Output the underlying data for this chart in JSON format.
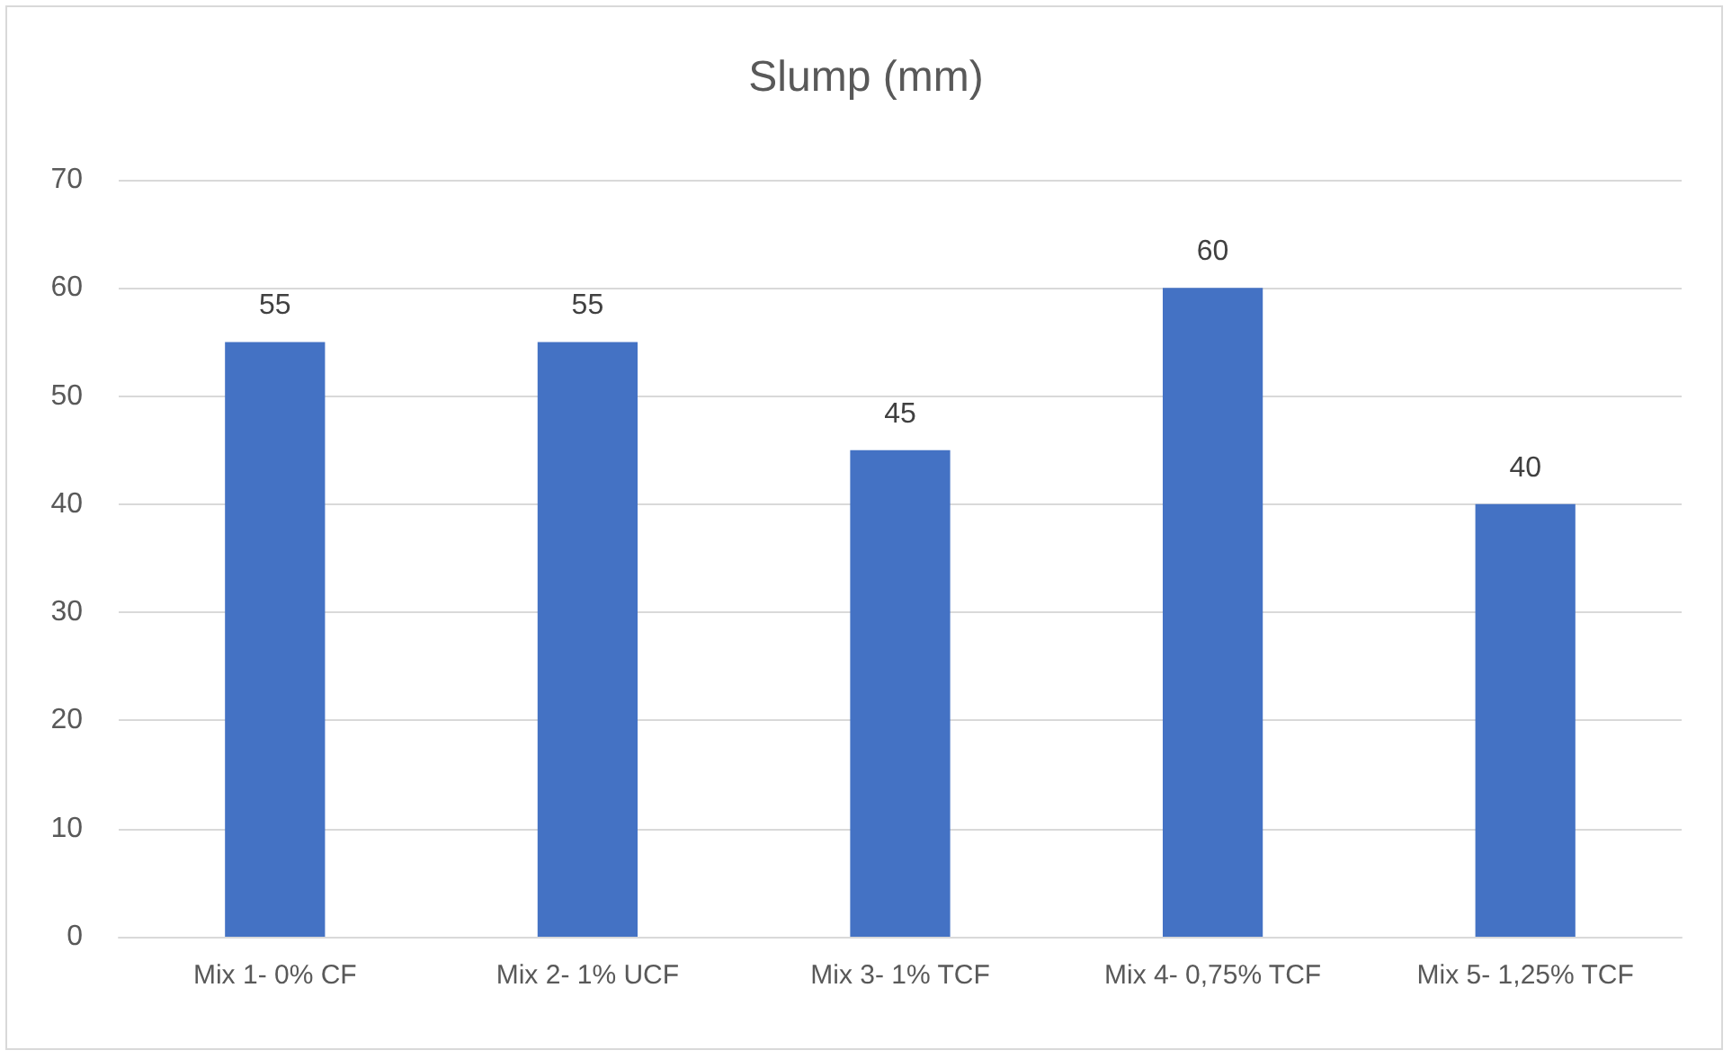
{
  "chart_data": {
    "type": "bar",
    "title": "Slump (mm)",
    "categories": [
      "Mix 1- 0% CF",
      "Mix 2- 1% UCF",
      "Mix 3- 1% TCF",
      "Mix 4- 0,75% TCF",
      "Mix 5- 1,25% TCF"
    ],
    "values": [
      55,
      55,
      45,
      60,
      40
    ],
    "color": "#4472c4",
    "ylim": [
      0,
      70
    ],
    "yticks": [
      0,
      10,
      20,
      30,
      40,
      50,
      60,
      70
    ],
    "grid": "y",
    "data_labels": true
  }
}
